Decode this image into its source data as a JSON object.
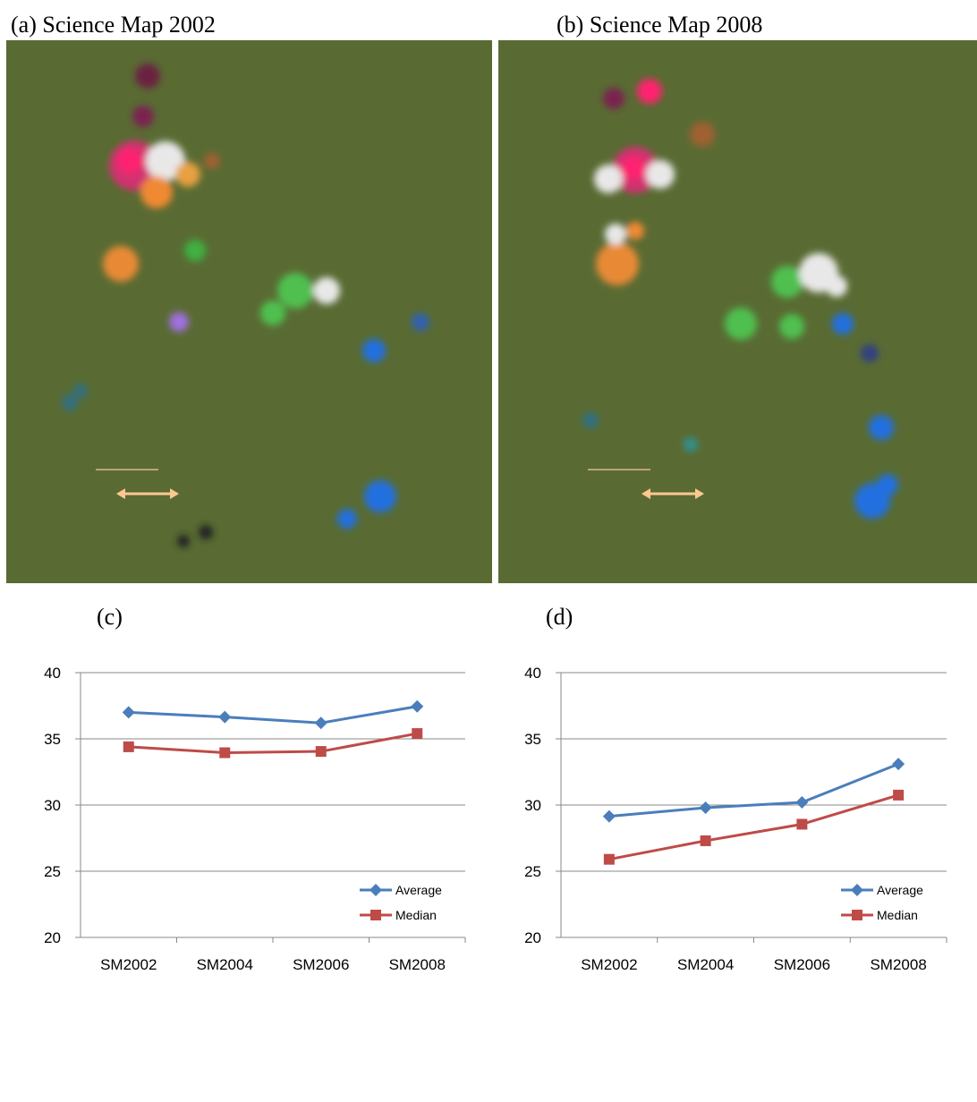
{
  "maps": [
    {
      "title": "(a) Science Map 2002"
    },
    {
      "title": "(b) Science Map 2008"
    }
  ],
  "chart_data": [
    {
      "type": "line",
      "title": "(c)",
      "categories": [
        "SM2002",
        "SM2004",
        "SM2006",
        "SM2008"
      ],
      "series": [
        {
          "name": "Average",
          "color": "#4a7ebb",
          "marker": "diamond",
          "values": [
            37.0,
            36.65,
            36.2,
            37.45
          ]
        },
        {
          "name": "Median",
          "color": "#be4b48",
          "marker": "square",
          "values": [
            34.4,
            33.95,
            34.05,
            35.4
          ]
        }
      ],
      "ylim": [
        20,
        40
      ],
      "yticks": [
        20,
        25,
        30,
        35,
        40
      ],
      "grid": true,
      "legend": "lower-right"
    },
    {
      "type": "line",
      "title": "(d)",
      "categories": [
        "SM2002",
        "SM2004",
        "SM2006",
        "SM2008"
      ],
      "series": [
        {
          "name": "Average",
          "color": "#4a7ebb",
          "marker": "diamond",
          "values": [
            29.15,
            29.8,
            30.2,
            33.1
          ]
        },
        {
          "name": "Median",
          "color": "#be4b48",
          "marker": "square",
          "values": [
            25.9,
            27.3,
            28.55,
            30.75
          ]
        }
      ],
      "ylim": [
        20,
        40
      ],
      "yticks": [
        20,
        25,
        30,
        35,
        40
      ],
      "grid": true,
      "legend": "lower-right"
    }
  ]
}
